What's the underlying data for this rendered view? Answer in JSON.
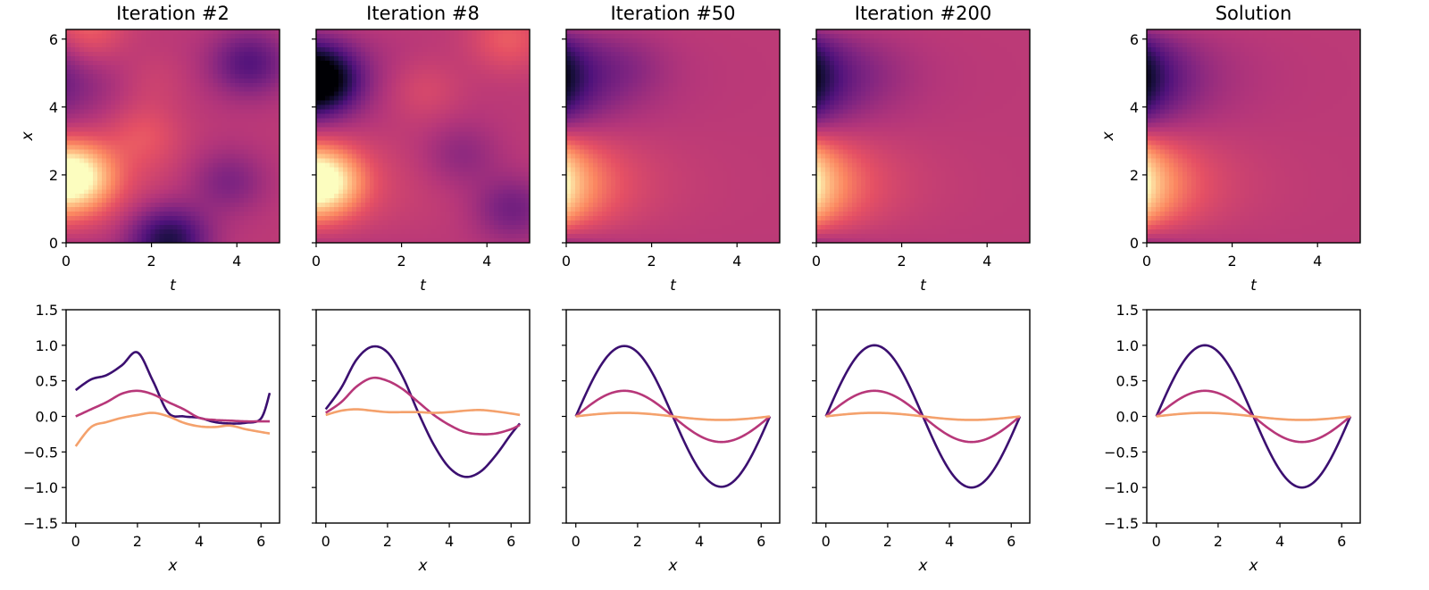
{
  "chart_data": [
    {
      "type": "heatmap",
      "title": "Iteration #2",
      "xlabel": "t",
      "ylabel": "x",
      "xlim": [
        0,
        5
      ],
      "ylim": [
        0,
        6.283
      ],
      "xticks": [
        "0",
        "2",
        "4"
      ],
      "yticks": [
        "0",
        "2",
        "4",
        "6"
      ],
      "colormap": "magma",
      "field": "noisy",
      "blobs": [
        {
          "t": 0.15,
          "x": 1.95,
          "amp": 1.0
        },
        {
          "t": 2.4,
          "x": 0.1,
          "amp": -0.85
        },
        {
          "t": 4.3,
          "x": 5.3,
          "amp": -0.55
        },
        {
          "t": 0.5,
          "x": 6.1,
          "amp": 0.35
        },
        {
          "t": 2.0,
          "x": 4.8,
          "amp": 0.15
        },
        {
          "t": 3.8,
          "x": 1.8,
          "amp": -0.35
        },
        {
          "t": 1.8,
          "x": 3.2,
          "amp": 0.25
        }
      ]
    },
    {
      "type": "heatmap",
      "title": "Iteration #8",
      "xlabel": "t",
      "ylabel": "",
      "xlim": [
        0,
        5
      ],
      "ylim": [
        0,
        6.283
      ],
      "xticks": [
        "0",
        "2",
        "4"
      ],
      "yticks": [
        "",
        "",
        "",
        ""
      ],
      "colormap": "magma",
      "field": "noisy",
      "blobs": [
        {
          "t": 0.1,
          "x": 1.8,
          "amp": 1.0
        },
        {
          "t": 0.0,
          "x": 4.8,
          "amp": -1.2
        },
        {
          "t": 4.6,
          "x": 1.0,
          "amp": -0.4
        },
        {
          "t": 4.5,
          "x": 6.0,
          "amp": 0.3
        },
        {
          "t": 2.5,
          "x": 4.5,
          "amp": 0.2
        },
        {
          "t": 3.4,
          "x": 2.6,
          "amp": -0.25
        }
      ]
    },
    {
      "type": "heatmap",
      "title": "Iteration #50",
      "xlabel": "t",
      "ylabel": "",
      "xlim": [
        0,
        5
      ],
      "ylim": [
        0,
        6.283
      ],
      "xticks": [
        "0",
        "2",
        "4"
      ],
      "yticks": [
        "",
        "",
        "",
        ""
      ],
      "colormap": "magma",
      "field": "clean",
      "blobs": [
        {
          "t": 1.5,
          "x": 5.2,
          "amp": -0.12
        }
      ]
    },
    {
      "type": "heatmap",
      "title": "Iteration #200",
      "xlabel": "t",
      "ylabel": "",
      "xlim": [
        0,
        5
      ],
      "ylim": [
        0,
        6.283
      ],
      "xticks": [
        "0",
        "2",
        "4"
      ],
      "yticks": [
        "",
        "",
        "",
        ""
      ],
      "colormap": "magma",
      "field": "clean",
      "blobs": [
        {
          "t": 1.5,
          "x": 5.0,
          "amp": -0.05
        }
      ]
    },
    {
      "type": "heatmap",
      "title": "Solution",
      "xlabel": "t",
      "ylabel": "x",
      "xlim": [
        0,
        5
      ],
      "ylim": [
        0,
        6.283
      ],
      "xticks": [
        "0",
        "2",
        "4"
      ],
      "yticks": [
        "0",
        "2",
        "4",
        "6"
      ],
      "colormap": "magma",
      "field": "clean",
      "blobs": []
    },
    {
      "type": "line",
      "title": "",
      "xlabel": "x",
      "ylabel": "",
      "xlim": [
        -0.31,
        6.6
      ],
      "ylim": [
        -1.5,
        1.5
      ],
      "xticks": [
        "0",
        "2",
        "4",
        "6"
      ],
      "yticks": [
        "1.5",
        "1.0",
        "0.5",
        "0.0",
        "−0.5",
        "−1.0",
        "−1.5"
      ],
      "series": [
        {
          "color": "#3b0f70",
          "x": [
            0,
            0.5,
            1.0,
            1.5,
            2.0,
            2.5,
            3.0,
            3.5,
            4.0,
            4.5,
            5.0,
            5.5,
            6.0,
            6.283
          ],
          "values": [
            0.37,
            0.52,
            0.58,
            0.72,
            0.9,
            0.5,
            0.05,
            0.0,
            -0.02,
            -0.08,
            -0.1,
            -0.09,
            -0.03,
            0.33
          ]
        },
        {
          "color": "#b73779",
          "x": [
            0,
            0.5,
            1.0,
            1.5,
            2.0,
            2.5,
            3.0,
            3.5,
            4.0,
            4.5,
            5.0,
            5.5,
            6.0,
            6.283
          ],
          "values": [
            0.0,
            0.1,
            0.2,
            0.32,
            0.36,
            0.31,
            0.2,
            0.1,
            -0.02,
            -0.05,
            -0.06,
            -0.07,
            -0.07,
            -0.07
          ]
        },
        {
          "color": "#f4a16c",
          "x": [
            0,
            0.5,
            1.0,
            1.5,
            2.0,
            2.5,
            3.0,
            3.5,
            4.0,
            4.5,
            5.0,
            5.5,
            6.0,
            6.283
          ],
          "values": [
            -0.42,
            -0.15,
            -0.08,
            -0.02,
            0.02,
            0.05,
            0.0,
            -0.09,
            -0.14,
            -0.15,
            -0.13,
            -0.18,
            -0.22,
            -0.24
          ]
        }
      ]
    },
    {
      "type": "line",
      "title": "",
      "xlabel": "x",
      "ylabel": "",
      "xlim": [
        -0.31,
        6.6
      ],
      "ylim": [
        -1.5,
        1.5
      ],
      "xticks": [
        "0",
        "2",
        "4",
        "6"
      ],
      "yticks": [
        "",
        "",
        "",
        "",
        "",
        "",
        ""
      ],
      "series": [
        {
          "color": "#3b0f70",
          "x": [
            0,
            0.5,
            1.0,
            1.5,
            2.0,
            2.5,
            3.0,
            3.5,
            4.0,
            4.5,
            5.0,
            5.5,
            6.0,
            6.283
          ],
          "values": [
            0.1,
            0.4,
            0.8,
            0.98,
            0.9,
            0.55,
            0.05,
            -0.4,
            -0.72,
            -0.85,
            -0.78,
            -0.55,
            -0.25,
            -0.1
          ]
        },
        {
          "color": "#b73779",
          "x": [
            0,
            0.5,
            1.0,
            1.5,
            2.0,
            2.5,
            3.0,
            3.5,
            4.0,
            4.5,
            5.0,
            5.5,
            6.0,
            6.283
          ],
          "values": [
            0.05,
            0.2,
            0.42,
            0.54,
            0.5,
            0.38,
            0.2,
            0.02,
            -0.12,
            -0.22,
            -0.25,
            -0.24,
            -0.18,
            -0.12
          ]
        },
        {
          "color": "#f4a16c",
          "x": [
            0,
            0.5,
            1.0,
            1.5,
            2.0,
            2.5,
            3.0,
            3.5,
            4.0,
            4.5,
            5.0,
            5.5,
            6.0,
            6.283
          ],
          "values": [
            0.02,
            0.08,
            0.1,
            0.08,
            0.06,
            0.06,
            0.06,
            0.05,
            0.06,
            0.08,
            0.09,
            0.07,
            0.04,
            0.02
          ]
        }
      ]
    },
    {
      "type": "line",
      "title": "",
      "xlabel": "x",
      "ylabel": "",
      "xlim": [
        -0.31,
        6.6
      ],
      "ylim": [
        -1.5,
        1.5
      ],
      "xticks": [
        "0",
        "2",
        "4",
        "6"
      ],
      "yticks": [
        "",
        "",
        "",
        "",
        "",
        "",
        ""
      ],
      "series": [
        {
          "color": "#3b0f70",
          "sine": 0.99
        },
        {
          "color": "#b73779",
          "sine": 0.36
        },
        {
          "color": "#f4a16c",
          "sine": 0.05
        }
      ]
    },
    {
      "type": "line",
      "title": "",
      "xlabel": "x",
      "ylabel": "",
      "xlim": [
        -0.31,
        6.6
      ],
      "ylim": [
        -1.5,
        1.5
      ],
      "xticks": [
        "0",
        "2",
        "4",
        "6"
      ],
      "yticks": [
        "",
        "",
        "",
        "",
        "",
        "",
        ""
      ],
      "series": [
        {
          "color": "#3b0f70",
          "sine": 1.0
        },
        {
          "color": "#b73779",
          "sine": 0.36
        },
        {
          "color": "#f4a16c",
          "sine": 0.05
        }
      ]
    },
    {
      "type": "line",
      "title": "",
      "xlabel": "x",
      "ylabel": "",
      "xlim": [
        -0.31,
        6.6
      ],
      "ylim": [
        -1.5,
        1.5
      ],
      "xticks": [
        "0",
        "2",
        "4",
        "6"
      ],
      "yticks": [
        "1.5",
        "1.0",
        "0.5",
        "0.0",
        "−0.5",
        "−1.0",
        "−1.5"
      ],
      "series": [
        {
          "color": "#3b0f70",
          "sine": 1.0
        },
        {
          "color": "#b73779",
          "sine": 0.36
        },
        {
          "color": "#f4a16c",
          "sine": 0.05
        }
      ]
    }
  ]
}
